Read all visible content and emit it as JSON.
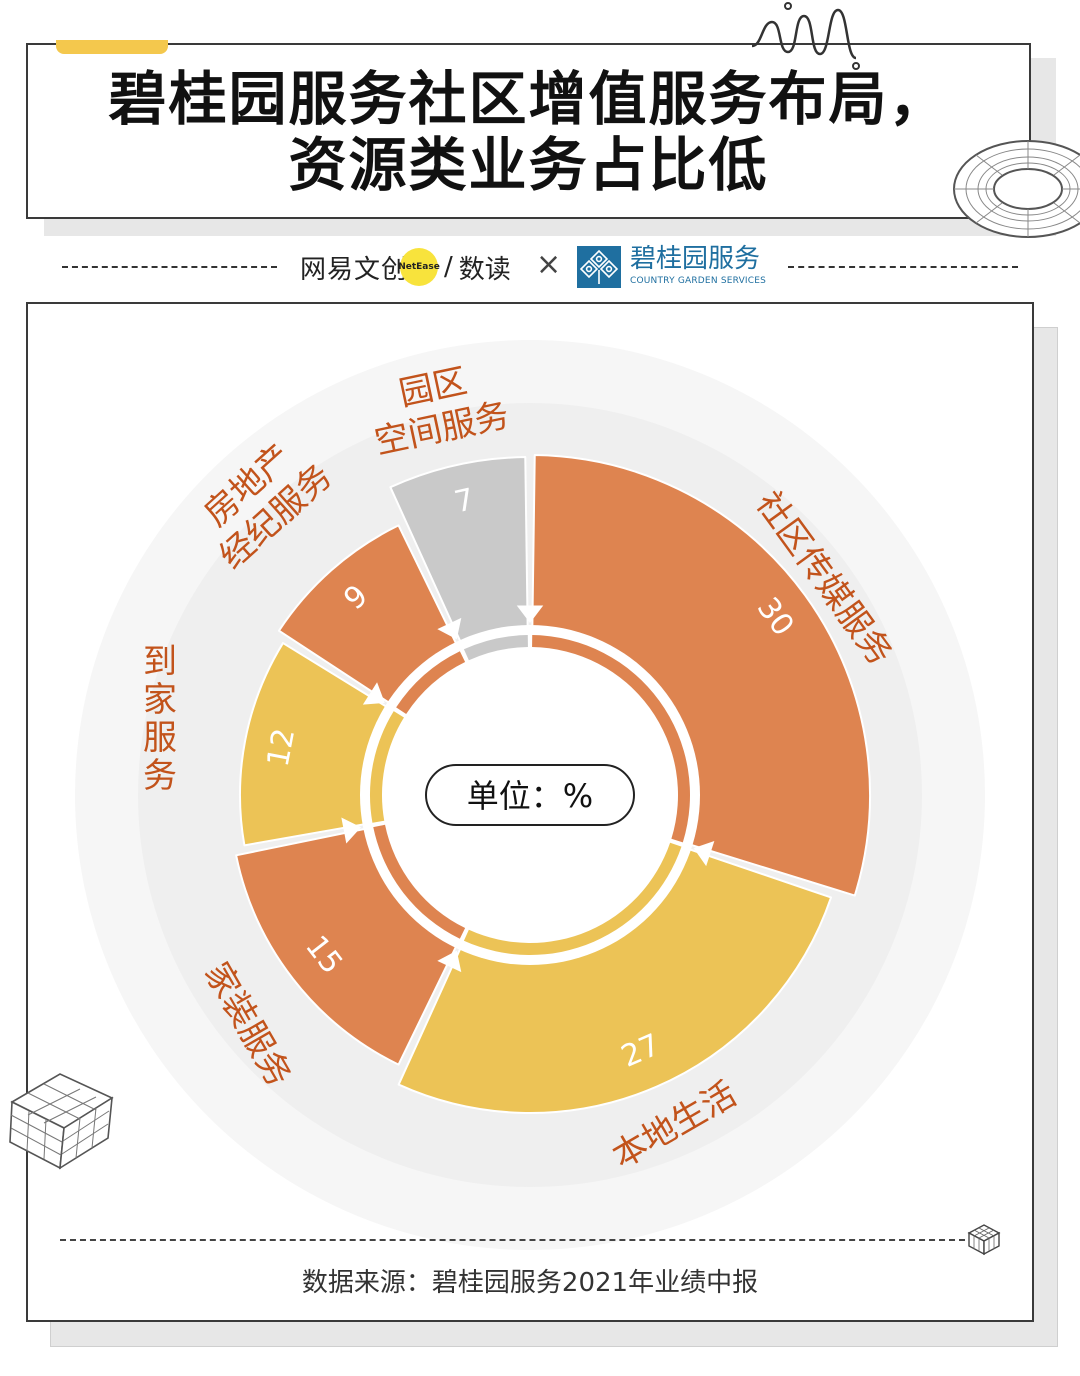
{
  "title": {
    "line1": "碧桂园服务社区增值服务布局，",
    "line2": "资源类业务占比低"
  },
  "brand": {
    "netease": "网易文创",
    "netease_badge": "NetEase",
    "slash": "/",
    "shudu": "数读",
    "cross": "×",
    "partner_name": "碧桂园服务",
    "partner_en": "COUNTRY GARDEN SERVICES"
  },
  "colors": {
    "orange": "#de8450",
    "yellow": "#ecc356",
    "gray": "#c9c9c9",
    "label": "#c2531b",
    "accent_tab": "#f4c84d",
    "logo_blue": "#1f6fa0"
  },
  "chart_data": {
    "type": "pie",
    "variant": "donut",
    "unit_label": "单位：%",
    "slices": [
      {
        "label": "社区传媒服务",
        "value": 30,
        "color": "orange"
      },
      {
        "label": "本地生活",
        "value": 27,
        "color": "yellow"
      },
      {
        "label": "家装服务",
        "value": 15,
        "color": "orange"
      },
      {
        "label": "到家服务",
        "value": 12,
        "color": "yellow"
      },
      {
        "label": "房地产经纪服务",
        "value": 9,
        "color": "orange"
      },
      {
        "label": "园区空间服务",
        "value": 7,
        "color": "gray"
      }
    ]
  },
  "source": "数据来源：碧桂园服务2021年业绩中报"
}
